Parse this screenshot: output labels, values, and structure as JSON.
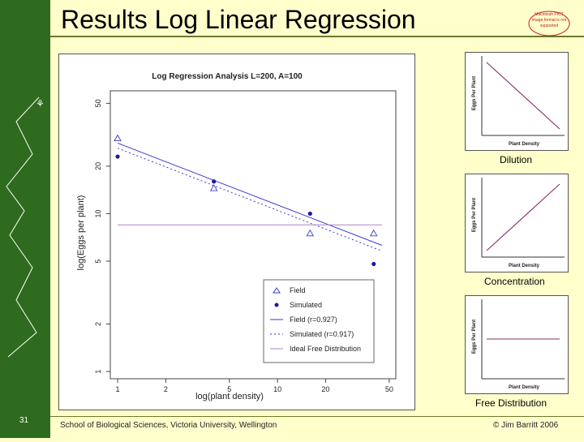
{
  "slide": {
    "title": "Results Log Linear Regression",
    "number": "31",
    "footer_left": "School of Biological Sciences, Victoria University, Wellington",
    "footer_right": "© Jim Barritt 2006",
    "logo_text": "Macintosh PICT image format is not supported"
  },
  "colors": {
    "sidebar": "#2e6b1e",
    "background": "#ffffcc",
    "accent": "#6b7a2a"
  },
  "chart_data": [
    {
      "type": "scatter",
      "title": "Log Regression Analysis L=200, A=100",
      "xlabel": "log(plant density)",
      "ylabel": "log(Eggs per plant)",
      "xscale": "log",
      "yscale": "log",
      "xlim": [
        0.9,
        55
      ],
      "ylim": [
        0.9,
        60
      ],
      "xticks": [
        1,
        2,
        5,
        10,
        20,
        50
      ],
      "yticks": [
        1,
        2,
        5,
        10,
        20,
        50
      ],
      "series": [
        {
          "name": "Field",
          "kind": "points",
          "marker": "triangle",
          "x": [
            1,
            4,
            16,
            40
          ],
          "y": [
            30,
            14.5,
            7.5,
            7.5
          ]
        },
        {
          "name": "Simulated",
          "kind": "points",
          "marker": "dot",
          "x": [
            1,
            4,
            16,
            40
          ],
          "y": [
            23,
            16,
            10,
            4.8
          ]
        },
        {
          "name": "Field (r=0.927)",
          "kind": "line",
          "style": "solid",
          "x": [
            1,
            45
          ],
          "y": [
            28,
            6.3
          ]
        },
        {
          "name": "Simulated (r=0.917)",
          "kind": "line",
          "style": "dotted",
          "x": [
            1,
            45
          ],
          "y": [
            26,
            5.8
          ]
        },
        {
          "name": "Ideal Free Distribution",
          "kind": "line",
          "style": "solid",
          "x": [
            1,
            45
          ],
          "y": [
            8.5,
            8.5
          ]
        }
      ],
      "legend": [
        "Field",
        "Simulated",
        "Field (r=0.927)",
        "Simulated (r=0.917)",
        "Ideal Free Distribution"
      ],
      "legend_position": "bottom-right"
    },
    {
      "type": "line",
      "title": "Dilution",
      "xlabel": "Plant Density",
      "ylabel": "Eggs Per Plant",
      "x": [
        0,
        1
      ],
      "y": [
        1,
        0
      ]
    },
    {
      "type": "line",
      "title": "Concentration",
      "xlabel": "Plant Density",
      "ylabel": "Eggs Per Plant",
      "x": [
        0,
        1
      ],
      "y": [
        0,
        1
      ]
    },
    {
      "type": "line",
      "title": "Free Distribution",
      "xlabel": "Plant Density",
      "ylabel": "Eggs Per Plant",
      "x": [
        0,
        1
      ],
      "y": [
        0.5,
        0.5
      ]
    }
  ]
}
